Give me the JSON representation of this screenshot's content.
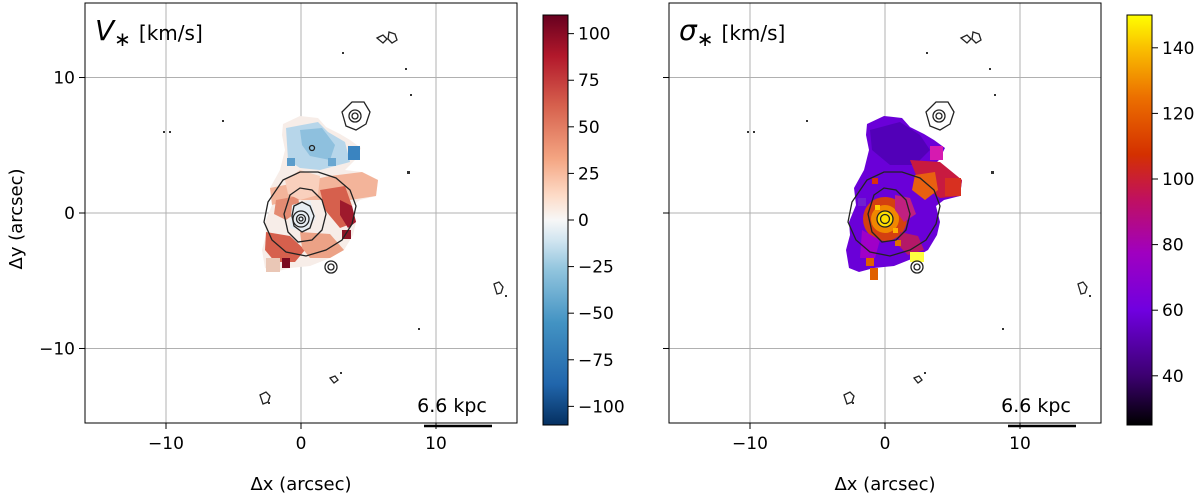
{
  "chart_data": [
    {
      "type": "heatmap",
      "panel": "left",
      "title_symbol": "V",
      "title_sub": "∗",
      "title_unit": "[km/s]",
      "xlabel": "Δx (arcsec)",
      "ylabel": "Δy (arcsec)",
      "xlim": [
        -16,
        16
      ],
      "ylim": [
        -15.5,
        15.5
      ],
      "xticks": [
        -10,
        0,
        10
      ],
      "yticks": [
        -10,
        0,
        10
      ],
      "xtick_labels": [
        "−10",
        "0",
        "10"
      ],
      "ytick_labels": [
        "−10",
        "0",
        "10"
      ],
      "grid": true,
      "scalebar_label": "6.6 kpc",
      "scalebar_x": [
        9,
        14
      ],
      "scalebar_y": -15,
      "colormap": "RdBu_r",
      "colorbar_range": [
        -110,
        110
      ],
      "colorbar_ticks": [
        100,
        75,
        50,
        25,
        0,
        -25,
        -50,
        -75,
        -100
      ],
      "colorbar_tick_labels": [
        "100",
        "75",
        "50",
        "25",
        "0",
        "−25",
        "−50",
        "−75",
        "−100"
      ]
    },
    {
      "type": "heatmap",
      "panel": "right",
      "title_symbol": "σ",
      "title_sub": "∗",
      "title_unit": "[km/s]",
      "xlabel": "Δx (arcsec)",
      "ylabel": "",
      "xlim": [
        -16,
        16
      ],
      "ylim": [
        -15.5,
        15.5
      ],
      "xticks": [
        -10,
        0,
        10
      ],
      "yticks": [
        -10,
        0,
        10
      ],
      "xtick_labels": [
        "−10",
        "0",
        "10"
      ],
      "ytick_labels": [
        "",
        "",
        ""
      ],
      "grid": true,
      "scalebar_label": "6.6 kpc",
      "scalebar_x": [
        9,
        14
      ],
      "scalebar_y": -15,
      "colormap": "gnuplot",
      "colorbar_range": [
        25,
        150
      ],
      "colorbar_ticks": [
        140,
        120,
        100,
        80,
        60,
        40
      ],
      "colorbar_tick_labels": [
        "140",
        "120",
        "100",
        "80",
        "60",
        "40"
      ]
    }
  ]
}
